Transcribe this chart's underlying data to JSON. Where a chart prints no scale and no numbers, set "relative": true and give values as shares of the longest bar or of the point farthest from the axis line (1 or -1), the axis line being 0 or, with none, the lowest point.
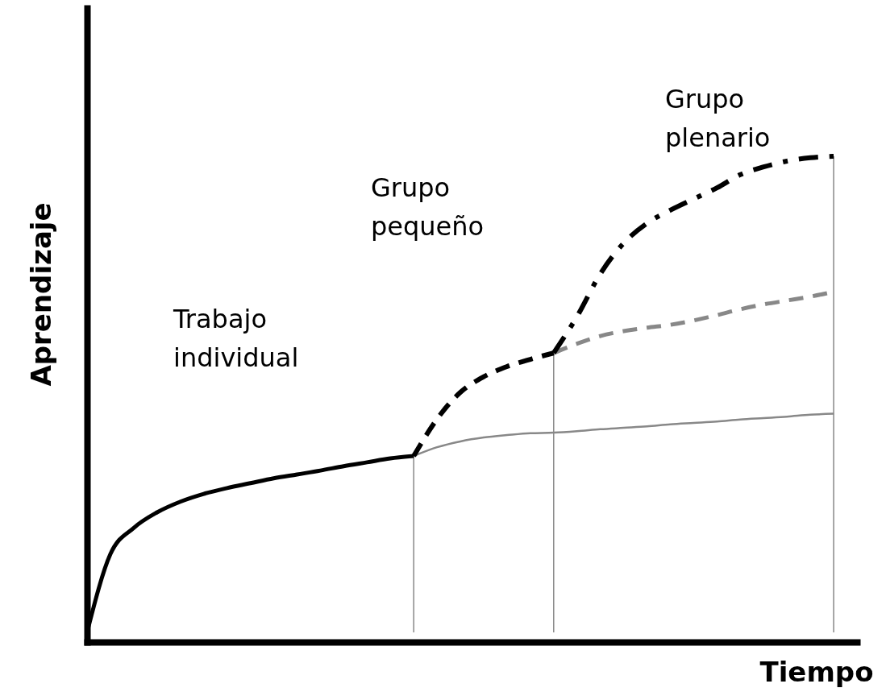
{
  "chart_data": {
    "type": "line",
    "relative": true,
    "xlabel": "Tiempo",
    "ylabel": "Aprendizaje",
    "tick_labels": false,
    "grid": false,
    "marker": "none",
    "categories": [
      null,
      null,
      null,
      null,
      null,
      null,
      null,
      null,
      null,
      null,
      null,
      null,
      null,
      null,
      null,
      null,
      null,
      null,
      null,
      null,
      null,
      null,
      null,
      null,
      null,
      null,
      null,
      null,
      null,
      null,
      null,
      null,
      null
    ],
    "series": [
      {
        "color": "#888888",
        "line_style": "solid",
        "values": [
          null,
          null,
          null,
          null,
          null,
          null,
          null,
          null,
          null,
          null,
          null,
          null,
          null,
          null,
          0.383,
          0.401,
          0.413,
          0.421,
          0.426,
          0.43,
          0.431,
          0.434,
          0.438,
          0.441,
          0.444,
          0.448,
          0.451,
          0.454,
          0.458,
          0.461,
          0.464,
          0.468,
          0.47
        ]
      },
      {
        "color": "#000000",
        "line_style": "solid",
        "values": [
          0.02,
          0.181,
          0.235,
          0.267,
          0.289,
          0.305,
          0.317,
          0.327,
          0.337,
          0.345,
          0.353,
          0.362,
          0.37,
          0.378,
          0.383,
          null,
          null,
          null,
          null,
          null,
          null,
          null,
          null,
          null,
          null,
          null,
          null,
          null,
          null,
          null,
          null,
          null,
          null
        ]
      },
      {
        "color": "#000000",
        "line_style": "dashed",
        "values": [
          null,
          null,
          null,
          null,
          null,
          null,
          null,
          null,
          null,
          null,
          null,
          null,
          null,
          null,
          0.383,
          0.459,
          0.514,
          0.546,
          0.567,
          0.582,
          0.595,
          null,
          null,
          null,
          null,
          null,
          null,
          null,
          null,
          null,
          null,
          null,
          null
        ]
      },
      {
        "color": "#888888",
        "line_style": "dashed",
        "values": [
          null,
          null,
          null,
          null,
          null,
          null,
          null,
          null,
          null,
          null,
          null,
          null,
          null,
          null,
          null,
          null,
          null,
          null,
          null,
          null,
          0.595,
          0.614,
          0.63,
          0.64,
          0.647,
          0.653,
          0.662,
          0.673,
          0.685,
          0.695,
          0.703,
          0.711,
          0.721
        ]
      },
      {
        "color": "#000000",
        "line_style": "dashdot",
        "values": [
          null,
          null,
          null,
          null,
          null,
          null,
          null,
          null,
          null,
          null,
          null,
          null,
          null,
          null,
          null,
          null,
          null,
          null,
          null,
          null,
          0.595,
          0.67,
          0.758,
          0.821,
          0.862,
          0.889,
          0.912,
          0.935,
          0.962,
          0.978,
          0.99,
          0.997,
          1.0
        ]
      }
    ],
    "annotations": [
      "Trabajo\nindividual",
      "Grupo\npequeño",
      "Grupo\nplenario"
    ]
  }
}
